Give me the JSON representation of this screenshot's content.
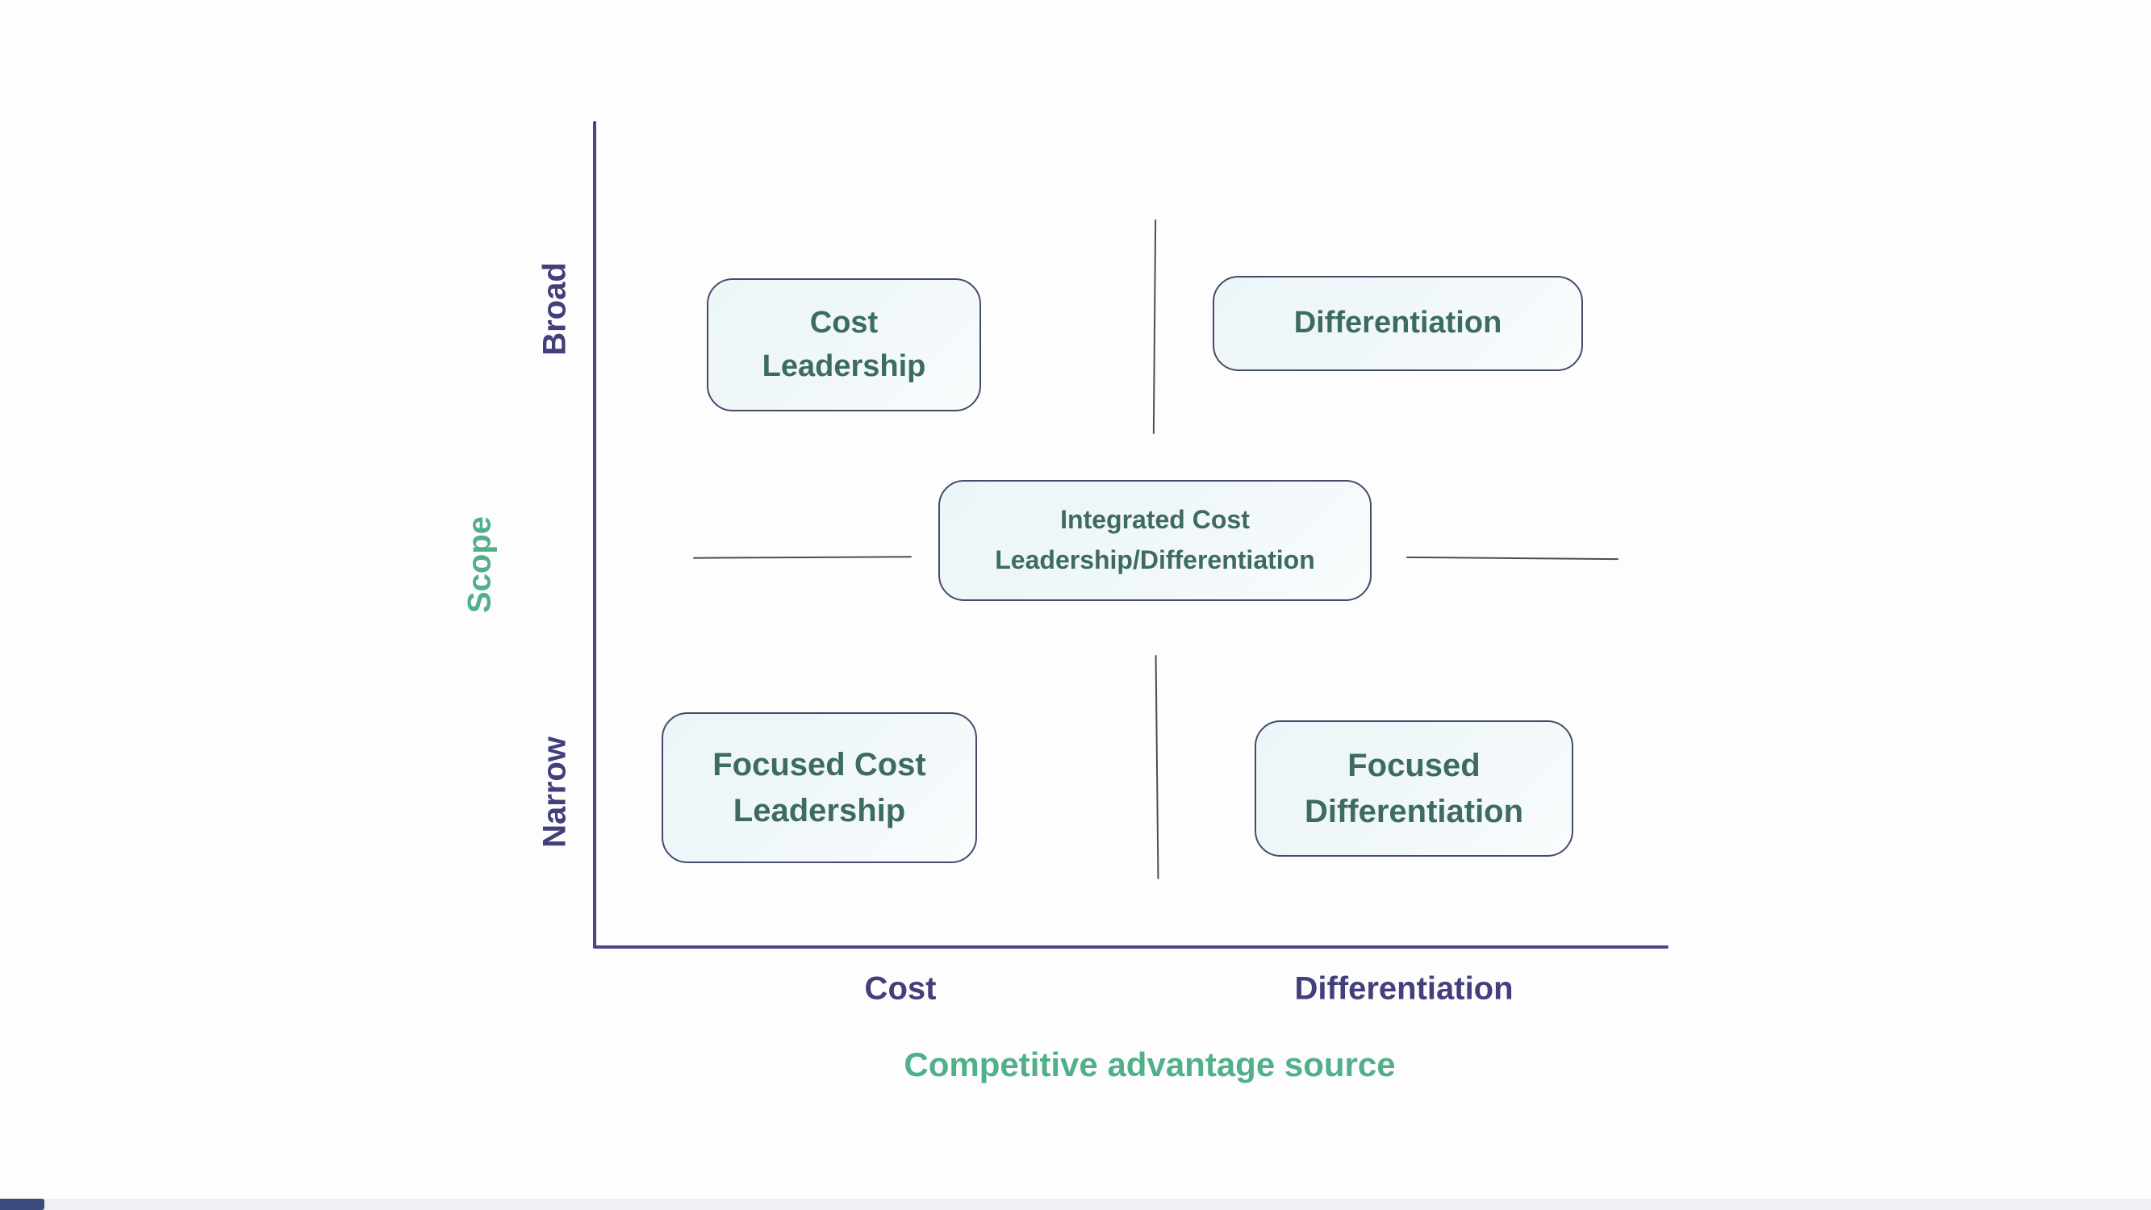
{
  "diagram": {
    "type": "matrix",
    "axes": {
      "y": {
        "label": "Scope",
        "ticks": [
          "Broad",
          "Narrow"
        ]
      },
      "x": {
        "label": "Competitive advantage source",
        "ticks": [
          "Cost",
          "Differentiation"
        ]
      }
    },
    "boxes": {
      "top_left": {
        "lines": [
          "Cost",
          "Leadership"
        ]
      },
      "top_right": {
        "lines": [
          "Differentiation"
        ]
      },
      "center": {
        "lines": [
          "Integrated Cost",
          "Leadership/Differentiation"
        ]
      },
      "bottom_left": {
        "lines": [
          "Focused Cost",
          "Leadership"
        ]
      },
      "bottom_right": {
        "lines": [
          "Focused",
          "Differentiation"
        ]
      }
    },
    "colors": {
      "background": "#fdfdfd",
      "axis": "#4a4585",
      "tick_label": "#423f7a",
      "axis_label": "#50b08a",
      "box_text": "#3d6c5e",
      "box_border": "#454b6b",
      "box_fill": "#f0f7f9",
      "divider": "#4c4c59",
      "scrubber_track": "#f0f0f4",
      "scrubber_played": "#3c4a7d"
    }
  }
}
